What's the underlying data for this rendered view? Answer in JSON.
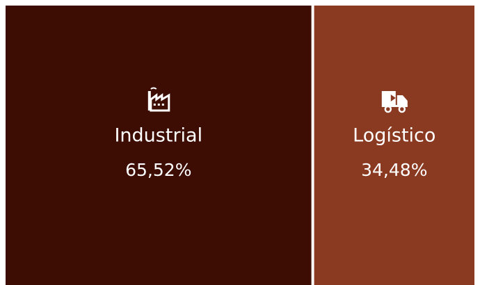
{
  "chart_data": {
    "type": "treemap",
    "categories": [
      "Industrial",
      "Logístico"
    ],
    "values": [
      65.52,
      34.48
    ],
    "value_labels": [
      "65,52%",
      "34,48%"
    ],
    "colors": [
      "#3d0d03",
      "#8b3a22"
    ]
  }
}
